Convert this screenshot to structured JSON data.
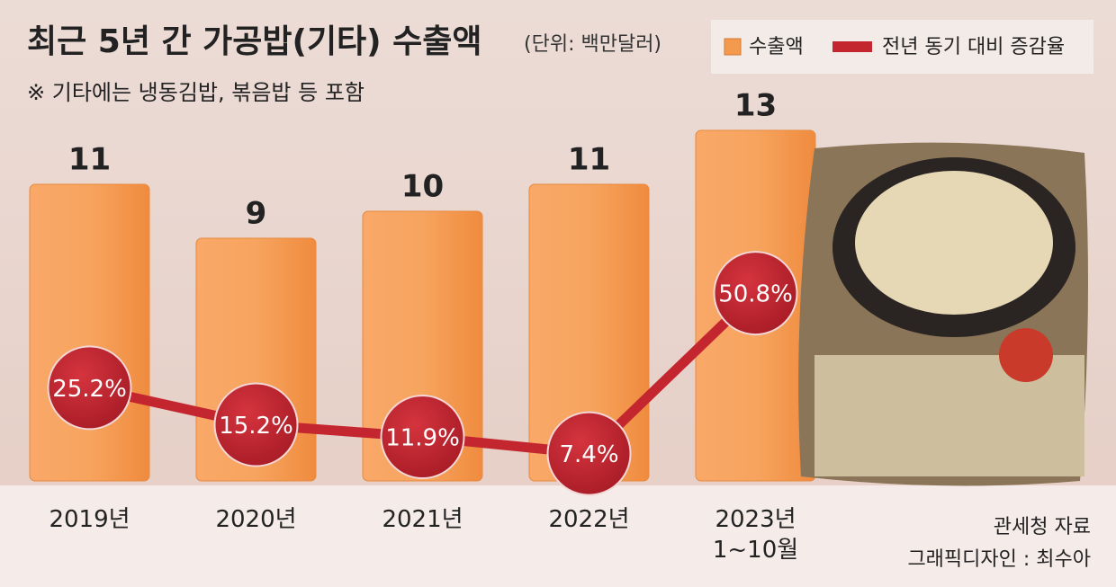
{
  "chart_data": {
    "type": "bar",
    "title": "최근 5년 간 가공밥(기타) 수출액",
    "unit": "(단위: 백만달러)",
    "subtitle": "※ 기타에는 냉동김밥, 볶음밥 등 포함",
    "categories": [
      "2019년",
      "2020년",
      "2021년",
      "2022년",
      "2023년\n1~10월"
    ],
    "series": [
      {
        "name": "수출액",
        "color": "#f39a4e",
        "values": [
          11,
          9,
          10,
          11,
          13
        ]
      },
      {
        "name": "전년 동기 대비 증감율",
        "type": "line",
        "axis": "y2",
        "color": "#c4262f",
        "values": [
          25.2,
          15.2,
          11.9,
          7.4,
          50.8
        ],
        "value_labels": [
          "25.2%",
          "15.2%",
          "11.9%",
          "7.4%",
          "50.8%"
        ]
      }
    ],
    "ylim": [
      0,
      17
    ],
    "y2lim": [
      0,
      124
    ],
    "source": [
      "관세청 자료",
      "그래픽디자인 : 최수아"
    ]
  }
}
